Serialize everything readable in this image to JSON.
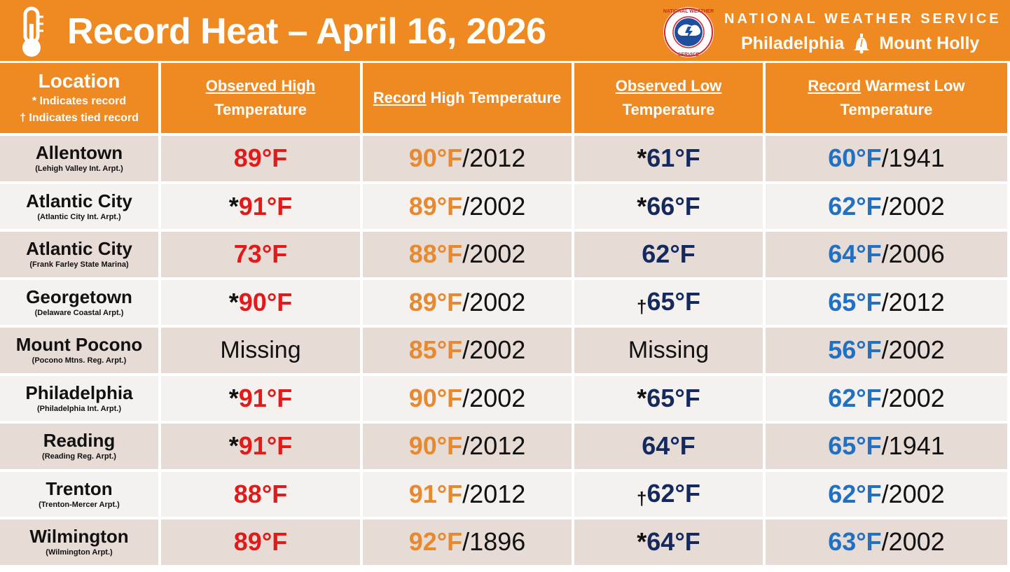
{
  "banner": {
    "title": "Record Heat – April 16, 2026",
    "agency": "NATIONAL WEATHER SERVICE",
    "office_left": "Philadelphia",
    "office_right": "Mount Holly",
    "logo_ring_text": "NATIONAL WEATHER SERVICE",
    "icons": [
      "thermometer-icon",
      "nws-logo-icon",
      "liberty-bell-icon"
    ]
  },
  "colors": {
    "banner": "#EF8A22",
    "observed_high": "#E21A1A",
    "record_high": "#E8892E",
    "observed_low": "#142A5E",
    "record_low": "#2170C2",
    "row_dark": "#E7DBD5",
    "row_light": "#F5F1EF"
  },
  "header": {
    "location_title": "Location",
    "location_note_1": "* Indicates record",
    "location_note_2": "† Indicates tied record",
    "obs_high_u": "Observed High",
    "obs_high_rest": "Temperature",
    "rec_high_u": "Record",
    "rec_high_rest": "High Temperature",
    "obs_low_u": "Observed Low",
    "obs_low_rest": "Temperature",
    "rec_low_u": "Record",
    "rec_low_rest": "Warmest Low",
    "rec_low_rest2": "Temperature"
  },
  "rows": [
    {
      "name": "Allentown",
      "sub": "(Lehigh Valley Int. Arpt.)",
      "obs_high_mark": "",
      "obs_high": "89°F",
      "rec_high": "90°F",
      "rec_high_year": "/2012",
      "obs_low_mark": "*",
      "obs_low": "61°F",
      "rec_low": "60°F",
      "rec_low_year": "/1941"
    },
    {
      "name": "Atlantic City",
      "sub": "(Atlantic City Int. Arpt.)",
      "obs_high_mark": "*",
      "obs_high": "91°F",
      "rec_high": "89°F",
      "rec_high_year": "/2002",
      "obs_low_mark": "*",
      "obs_low": "66°F",
      "rec_low": "62°F",
      "rec_low_year": "/2002"
    },
    {
      "name": "Atlantic City",
      "sub": "(Frank Farley State Marina)",
      "obs_high_mark": "",
      "obs_high": "73°F",
      "rec_high": "88°F",
      "rec_high_year": "/2002",
      "obs_low_mark": "",
      "obs_low": "62°F",
      "rec_low": "64°F",
      "rec_low_year": "/2006"
    },
    {
      "name": "Georgetown",
      "sub": "(Delaware Coastal Arpt.)",
      "obs_high_mark": "*",
      "obs_high": "90°F",
      "rec_high": "89°F",
      "rec_high_year": "/2002",
      "obs_low_mark": "†",
      "obs_low": "65°F",
      "rec_low": "65°F",
      "rec_low_year": "/2012"
    },
    {
      "name": "Mount Pocono",
      "sub": "(Pocono Mtns. Reg. Arpt.)",
      "obs_high_mark": "",
      "obs_high": "Missing",
      "rec_high": "85°F",
      "rec_high_year": "/2002",
      "obs_low_mark": "",
      "obs_low": "Missing",
      "rec_low": "56°F",
      "rec_low_year": "/2002"
    },
    {
      "name": "Philadelphia",
      "sub": "(Philadelphia Int. Arpt.)",
      "obs_high_mark": "*",
      "obs_high": "91°F",
      "rec_high": "90°F",
      "rec_high_year": "/2002",
      "obs_low_mark": "*",
      "obs_low": "65°F",
      "rec_low": "62°F",
      "rec_low_year": "/2002"
    },
    {
      "name": "Reading",
      "sub": "(Reading Reg. Arpt.)",
      "obs_high_mark": "*",
      "obs_high": "91°F",
      "rec_high": "90°F",
      "rec_high_year": "/2012",
      "obs_low_mark": "",
      "obs_low": "64°F",
      "rec_low": "65°F",
      "rec_low_year": "/1941"
    },
    {
      "name": "Trenton",
      "sub": "(Trenton-Mercer Arpt.)",
      "obs_high_mark": "",
      "obs_high": "88°F",
      "rec_high": "91°F",
      "rec_high_year": "/2012",
      "obs_low_mark": "†",
      "obs_low": "62°F",
      "rec_low": "62°F",
      "rec_low_year": "/2002"
    },
    {
      "name": "Wilmington",
      "sub": "(Wilmington Arpt.)",
      "obs_high_mark": "",
      "obs_high": "89°F",
      "rec_high": "92°F",
      "rec_high_year": "/1896",
      "obs_low_mark": "*",
      "obs_low": "64°F",
      "rec_low": "63°F",
      "rec_low_year": "/2002"
    }
  ]
}
